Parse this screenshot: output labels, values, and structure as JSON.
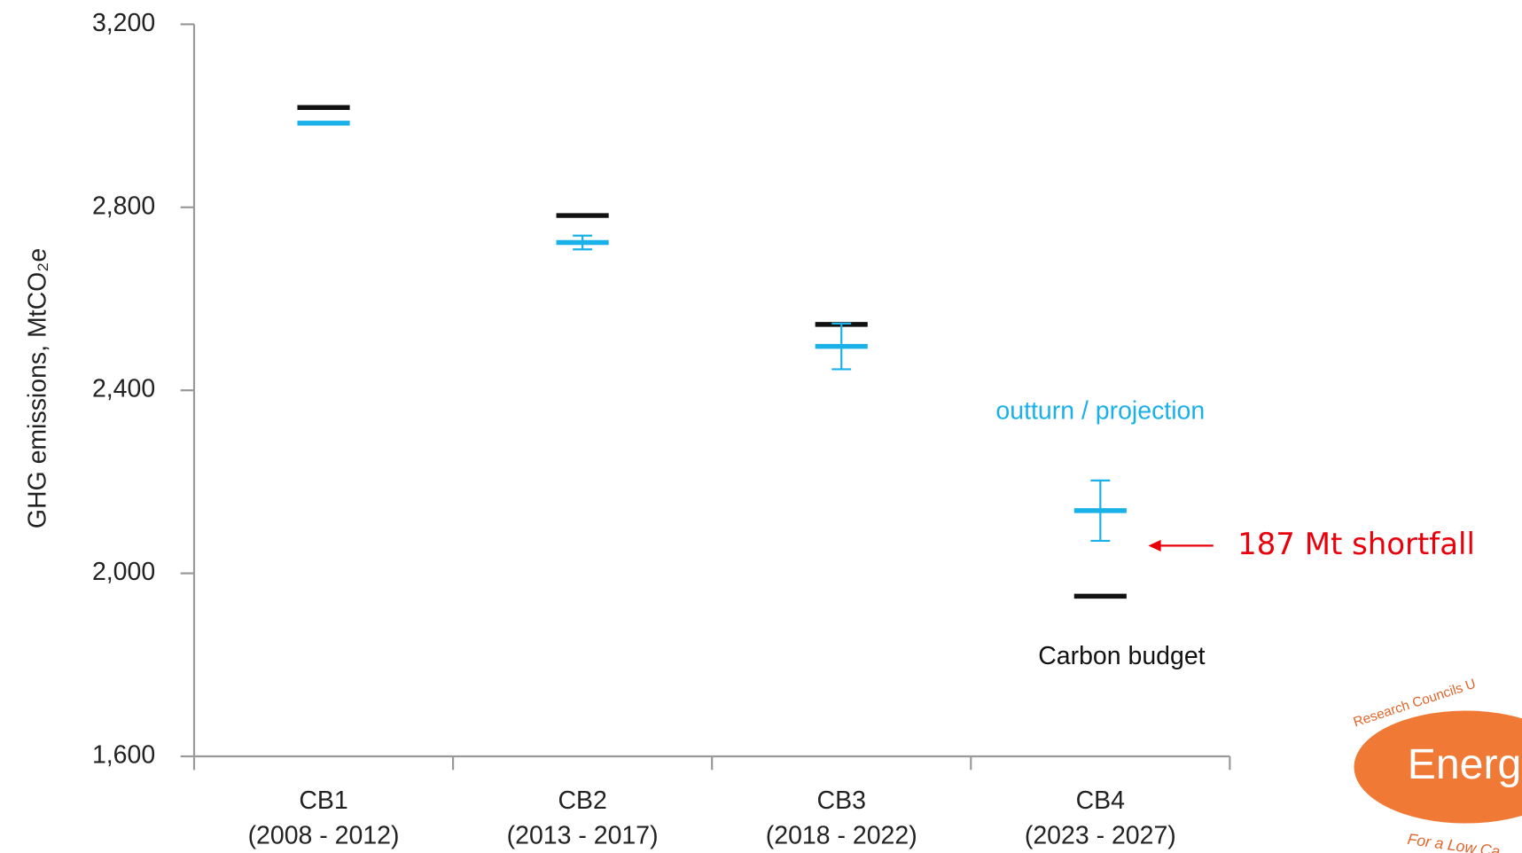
{
  "chart_data": {
    "type": "errorbar",
    "y_label": "GHG emissions, MtCO₂e",
    "categories": [
      "CB1",
      "CB2",
      "CB3",
      "CB4"
    ],
    "periods": [
      "(2008 - 2012)",
      "(2013 - 2017)",
      "(2018 - 2022)",
      "(2023 - 2027)"
    ],
    "series": [
      {
        "name": "Carbon budget",
        "color": "#111111",
        "values": [
          3018,
          2782,
          2544,
          1950
        ]
      },
      {
        "name": "outturn / projection",
        "color": "#1ab0e8",
        "values": [
          2984,
          2723,
          2496,
          2137
        ],
        "errors": [
          0,
          15,
          50,
          66
        ]
      }
    ],
    "ylim": [
      1600,
      3200
    ],
    "yticks": [
      {
        "value": 1600,
        "label": "1,600"
      },
      {
        "value": 2000,
        "label": "2,000"
      },
      {
        "value": 2400,
        "label": "2,400"
      },
      {
        "value": 2800,
        "label": "2,800"
      },
      {
        "value": 3200,
        "label": "3,200"
      }
    ],
    "annotation": "187 Mt shortfall",
    "annotation_color": "#e8000b",
    "logo": {
      "top": "Research Councils U",
      "main": "Energ",
      "bottom": "For a Low Ca"
    }
  }
}
